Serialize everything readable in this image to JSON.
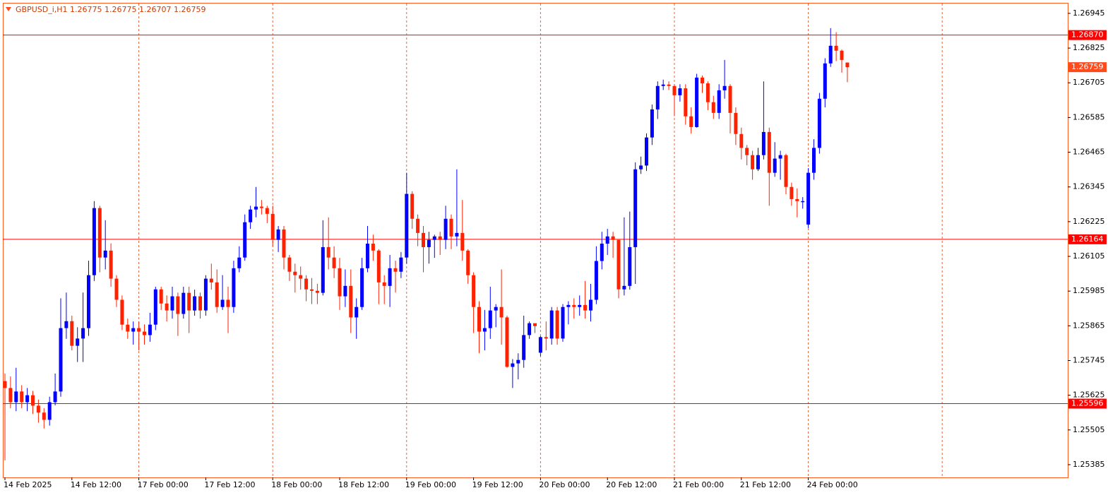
{
  "chart_data": {
    "type": "candlestick",
    "title": "GBPUSD_i,H1  1.26775 1.26775 1.26707 1.26759",
    "categories": [
      "14 Feb 2025",
      null,
      null,
      null,
      null,
      null,
      null,
      null,
      null,
      null,
      null,
      null,
      "14 Feb 12:00",
      null,
      null,
      null,
      null,
      null,
      null,
      null,
      null,
      null,
      null,
      null,
      "17 Feb 00:00",
      null,
      null,
      null,
      null,
      null,
      null,
      null,
      null,
      null,
      null,
      null,
      "17 Feb 12:00",
      null,
      null,
      null,
      null,
      null,
      null,
      null,
      null,
      null,
      null,
      null,
      "18 Feb 00:00",
      null,
      null,
      null,
      null,
      null,
      null,
      null,
      null,
      null,
      null,
      null,
      "18 Feb 12:00",
      null,
      null,
      null,
      null,
      null,
      null,
      null,
      null,
      null,
      null,
      null,
      "19 Feb 00:00",
      null,
      null,
      null,
      null,
      null,
      null,
      null,
      null,
      null,
      null,
      null,
      "19 Feb 12:00",
      null,
      null,
      null,
      null,
      null,
      null,
      null,
      null,
      null,
      null,
      null,
      "20 Feb 00:00",
      null,
      null,
      null,
      null,
      null,
      null,
      null,
      null,
      null,
      null,
      null,
      "20 Feb 12:00",
      null,
      null,
      null,
      null,
      null,
      null,
      null,
      null,
      null,
      null,
      null,
      "21 Feb 00:00",
      null,
      null,
      null,
      null,
      null,
      null,
      null,
      null,
      null,
      null,
      null,
      "21 Feb 12:00",
      null,
      null,
      null,
      null,
      null,
      null,
      null,
      null,
      null,
      null,
      null,
      "24 Feb 00:00",
      null,
      null,
      null,
      null,
      null,
      null,
      null
    ],
    "open": [
      1.25674,
      1.2565,
      1.25601,
      1.25638,
      1.25601,
      1.25625,
      1.25589,
      1.25565,
      1.2554,
      1.25601,
      1.25638,
      1.25857,
      1.25881,
      1.25796,
      1.25821,
      1.25857,
      1.2604,
      1.26272,
      1.26101,
      1.26125,
      1.26028,
      1.25955,
      1.25869,
      1.25845,
      1.25857,
      1.25845,
      1.25833,
      1.25869,
      1.25991,
      1.25942,
      1.25918,
      1.25967,
      1.25906,
      1.25979,
      1.25918,
      1.25967,
      1.25918,
      1.26028,
      1.26015,
      1.2593,
      1.25955,
      1.2593,
      1.26064,
      1.26101,
      1.26223,
      1.26267,
      1.26277,
      1.26272,
      1.26252,
      1.26162,
      1.26198,
      1.26101,
      1.26052,
      1.2604,
      1.26028,
      1.25991,
      1.25986,
      1.25979,
      1.26137,
      1.26101,
      1.26064,
      1.25967,
      1.26003,
      1.25894,
      1.2593,
      1.26064,
      1.26149,
      1.26125,
      1.26015,
      1.26003,
      1.26064,
      1.26052,
      1.26101,
      1.26321,
      1.26235,
      1.26186,
      1.26137,
      1.26162,
      1.26174,
      1.26162,
      1.26235,
      1.26174,
      1.26186,
      1.26125,
      1.2604,
      1.2593,
      1.25845,
      1.25857,
      1.25918,
      1.2593,
      1.25894,
      1.25723,
      1.25735,
      1.25747,
      1.25833,
      1.25874,
      1.25772,
      1.25826,
      1.25821,
      1.25918,
      1.25821,
      1.2593,
      1.25937,
      1.2593,
      1.25937,
      1.25918,
      1.25955,
      1.26089,
      1.26149,
      1.26174,
      1.26162,
      1.25991,
      1.26003,
      1.26137,
      1.26406,
      1.26419,
      1.26516,
      1.26613,
      1.26694,
      1.26699,
      1.26694,
      1.26662,
      1.26686,
      1.26589,
      1.26552,
      1.26723,
      1.26703,
      1.26638,
      1.26601,
      1.26679,
      1.26694,
      1.26601,
      1.26528,
      1.2648,
      1.26455,
      1.26406,
      1.26455,
      1.26535,
      1.26394,
      1.26443,
      1.26455,
      1.26345,
      1.26303,
      1.26296,
      1.26215,
      1.26394,
      1.2648,
      1.2665,
      1.26772,
      1.26833,
      1.26816,
      1.26775
    ],
    "high": [
      1.257,
      1.2569,
      1.2572,
      1.2566,
      1.2565,
      1.2564,
      1.2561,
      1.2558,
      1.2562,
      1.257,
      1.2596,
      1.2598,
      1.259,
      1.2586,
      1.2598,
      1.2609,
      1.26296,
      1.2628,
      1.2623,
      1.2615,
      1.2604,
      1.2597,
      1.2589,
      1.2588,
      1.2588,
      1.2587,
      1.2591,
      1.26,
      1.26,
      1.2597,
      1.26,
      1.2598,
      1.26,
      1.26,
      1.2599,
      1.2598,
      1.2604,
      1.2608,
      1.2606,
      1.2604,
      1.26,
      1.2609,
      1.2614,
      1.2625,
      1.2628,
      1.26345,
      1.263,
      1.2628,
      1.2628,
      1.2621,
      1.2621,
      1.2611,
      1.2608,
      1.2607,
      1.2604,
      1.2603,
      1.2601,
      1.2623,
      1.2624,
      1.2614,
      1.261,
      1.2606,
      1.2606,
      1.2596,
      1.261,
      1.2621,
      1.2618,
      1.2613,
      1.2604,
      1.2611,
      1.2609,
      1.2612,
      1.26394,
      1.2633,
      1.2625,
      1.2621,
      1.2619,
      1.2618,
      1.2619,
      1.2628,
      1.2625,
      1.26406,
      1.263,
      1.2613,
      1.2605,
      1.2595,
      1.2592,
      1.26,
      1.2594,
      1.2606,
      1.259,
      1.2575,
      1.2577,
      1.259,
      1.2588,
      1.2587,
      1.2583,
      1.2588,
      1.2593,
      1.2593,
      1.2594,
      1.2595,
      1.2596,
      1.2597,
      1.2602,
      1.2601,
      1.2614,
      1.2619,
      1.262,
      1.2619,
      1.2616,
      1.2624,
      1.2626,
      1.2643,
      1.2645,
      1.2653,
      1.2663,
      1.2671,
      1.26716,
      1.2671,
      1.267,
      1.267,
      1.267,
      1.2662,
      1.26736,
      1.2673,
      1.2671,
      1.2666,
      1.267,
      1.26784,
      1.267,
      1.2662,
      1.2655,
      1.2649,
      1.2647,
      1.2648,
      1.2671,
      1.2655,
      1.265,
      1.2647,
      1.2646,
      1.2636,
      1.2634,
      1.2631,
      1.2641,
      1.2651,
      1.2667,
      1.2679,
      1.26894,
      1.2688,
      1.2682,
      1.26775
    ],
    "low": [
      1.254,
      1.2558,
      1.2557,
      1.2558,
      1.2557,
      1.2556,
      1.2553,
      1.2551,
      1.2552,
      1.2559,
      1.2562,
      1.2582,
      1.2578,
      1.2574,
      1.2574,
      1.2583,
      1.2602,
      1.2605,
      1.2606,
      1.26,
      1.2593,
      1.2585,
      1.2582,
      1.258,
      1.2578,
      1.258,
      1.2581,
      1.2585,
      1.2592,
      1.2588,
      1.2589,
      1.2583,
      1.2589,
      1.2584,
      1.259,
      1.2589,
      1.259,
      1.2599,
      1.2591,
      1.2592,
      1.2584,
      1.2591,
      1.2605,
      1.2609,
      1.262,
      1.2624,
      1.2625,
      1.2622,
      1.2614,
      1.2612,
      1.2606,
      1.2602,
      1.2598,
      1.2599,
      1.2595,
      1.2594,
      1.2594,
      1.2597,
      1.2606,
      1.2603,
      1.2592,
      1.2593,
      1.2584,
      1.2582,
      1.2592,
      1.2605,
      1.2609,
      1.2594,
      1.2594,
      1.2593,
      1.2598,
      1.2603,
      1.2608,
      1.262,
      1.2614,
      1.2605,
      1.2608,
      1.261,
      1.2611,
      1.2613,
      1.2613,
      1.2614,
      1.2609,
      1.2601,
      1.2584,
      1.2577,
      1.2578,
      1.2582,
      1.2586,
      1.258,
      1.2572,
      1.2565,
      1.2568,
      1.2572,
      1.2582,
      1.2584,
      1.2576,
      1.2578,
      1.258,
      1.258,
      1.2581,
      1.2587,
      1.2589,
      1.259,
      1.2589,
      1.2588,
      1.2594,
      1.2606,
      1.2611,
      1.261,
      1.2596,
      1.2597,
      1.2599,
      1.2601,
      1.2639,
      1.264,
      1.2649,
      1.2658,
      1.2668,
      1.2668,
      1.2659,
      1.2664,
      1.2656,
      1.2653,
      1.2655,
      1.2667,
      1.2661,
      1.2658,
      1.2658,
      1.2665,
      1.2653,
      1.2649,
      1.2644,
      1.2642,
      1.2637,
      1.264,
      1.2644,
      1.2628,
      1.2638,
      1.2637,
      1.2632,
      1.2628,
      1.2624,
      1.2627,
      1.26203,
      1.2637,
      1.2646,
      1.2662,
      1.2676,
      1.2678,
      1.2674,
      1.26707
    ],
    "close": [
      1.2565,
      1.25601,
      1.25638,
      1.25601,
      1.25625,
      1.25589,
      1.25565,
      1.2554,
      1.25601,
      1.25638,
      1.25857,
      1.25881,
      1.25796,
      1.25821,
      1.25857,
      1.2604,
      1.26272,
      1.26101,
      1.26125,
      1.26028,
      1.25955,
      1.25869,
      1.25845,
      1.25857,
      1.25845,
      1.25833,
      1.25869,
      1.25991,
      1.25942,
      1.25918,
      1.25967,
      1.25906,
      1.25979,
      1.25918,
      1.25967,
      1.25918,
      1.26028,
      1.26015,
      1.2593,
      1.25955,
      1.2593,
      1.26064,
      1.26101,
      1.26223,
      1.26267,
      1.26277,
      1.26272,
      1.26252,
      1.26162,
      1.26198,
      1.26101,
      1.26052,
      1.2604,
      1.26028,
      1.25991,
      1.25986,
      1.25979,
      1.26137,
      1.26101,
      1.26064,
      1.25967,
      1.26003,
      1.25894,
      1.2593,
      1.26064,
      1.26149,
      1.26125,
      1.26015,
      1.26003,
      1.26064,
      1.26052,
      1.26101,
      1.26321,
      1.26235,
      1.26186,
      1.26137,
      1.26162,
      1.26174,
      1.26162,
      1.26235,
      1.26174,
      1.26186,
      1.26125,
      1.2604,
      1.2593,
      1.25845,
      1.25857,
      1.25918,
      1.2593,
      1.25894,
      1.25723,
      1.25735,
      1.25747,
      1.25833,
      1.25874,
      1.25864,
      1.25826,
      1.25821,
      1.25918,
      1.25821,
      1.2593,
      1.25937,
      1.2593,
      1.25937,
      1.25918,
      1.25955,
      1.26089,
      1.26149,
      1.26174,
      1.26162,
      1.25991,
      1.26003,
      1.26137,
      1.26406,
      1.26419,
      1.26516,
      1.26613,
      1.26694,
      1.26699,
      1.26694,
      1.26662,
      1.26686,
      1.26589,
      1.26552,
      1.26723,
      1.26703,
      1.26638,
      1.26601,
      1.26679,
      1.26694,
      1.26601,
      1.26528,
      1.2648,
      1.26455,
      1.26406,
      1.26455,
      1.26535,
      1.26394,
      1.26443,
      1.26455,
      1.26345,
      1.26303,
      1.26296,
      1.26296,
      1.26394,
      1.2648,
      1.2665,
      1.26772,
      1.26833,
      1.26816,
      1.26784,
      1.26759
    ],
    "ylim": [
      1.25341,
      1.26979
    ],
    "yticks": [
      1.26945,
      1.26825,
      1.26705,
      1.26585,
      1.26465,
      1.26345,
      1.26225,
      1.26105,
      1.25985,
      1.25865,
      1.25745,
      1.25625,
      1.25505,
      1.25385
    ],
    "levels": [
      {
        "value": 1.2687,
        "label": "1.26870"
      },
      1.26164,
      1.25596
    ],
    "last": 1.26759,
    "grid": true,
    "up_color": "#0000ff",
    "down_color": "#ff2200",
    "level_color": "#ff0000",
    "grid_color": "#ff5a1f",
    "last_color": "#ff4a1c"
  }
}
